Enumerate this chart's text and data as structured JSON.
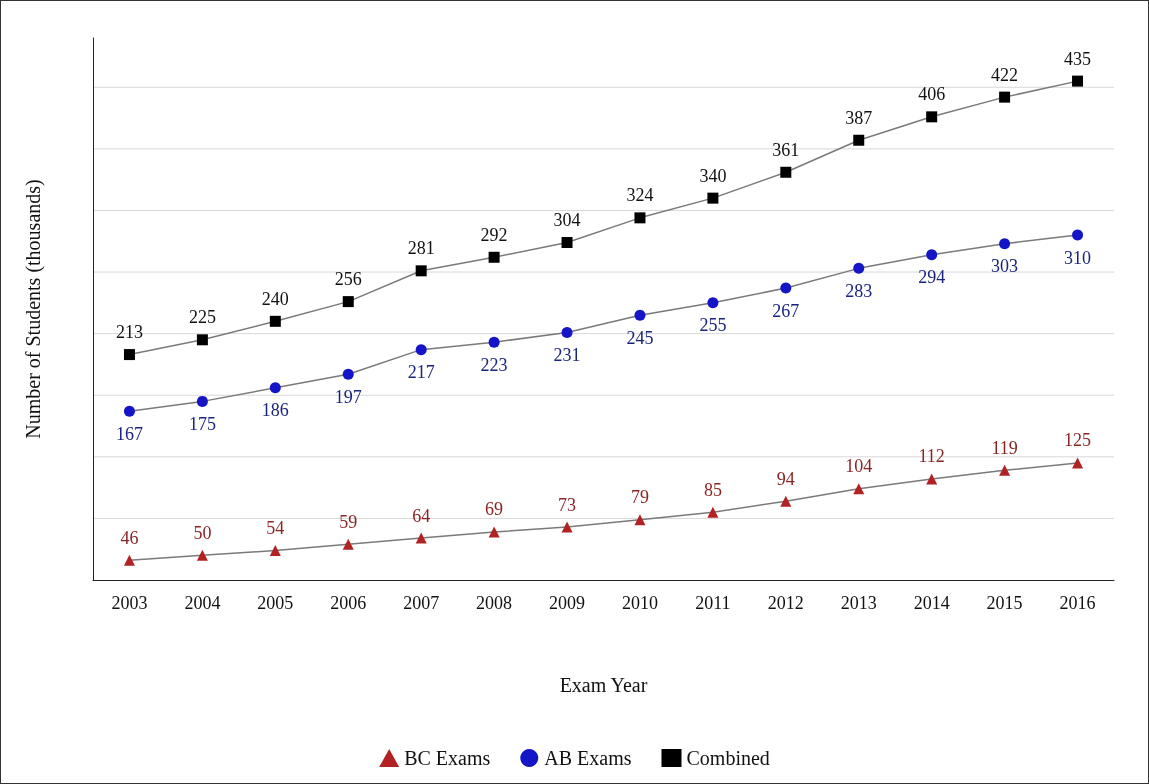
{
  "chart_data": {
    "type": "line",
    "xlabel": "Exam Year",
    "ylabel": "Number of Students (thousands)",
    "categories": [
      "2003",
      "2004",
      "2005",
      "2006",
      "2007",
      "2008",
      "2009",
      "2010",
      "2011",
      "2012",
      "2013",
      "2014",
      "2015",
      "2016"
    ],
    "series": [
      {
        "name": "BC Exams",
        "color": "#b22222",
        "marker": "triangle",
        "values": [
          46,
          50,
          54,
          59,
          64,
          69,
          73,
          79,
          85,
          94,
          104,
          112,
          119,
          125
        ]
      },
      {
        "name": "AB Exams",
        "color": "#1515c8",
        "marker": "circle",
        "values": [
          167,
          175,
          186,
          197,
          217,
          223,
          231,
          245,
          255,
          267,
          283,
          294,
          303,
          310
        ]
      },
      {
        "name": "Combined",
        "color": "#000000",
        "marker": "square",
        "values": [
          213,
          225,
          240,
          256,
          281,
          292,
          304,
          324,
          340,
          361,
          387,
          406,
          422,
          435
        ]
      }
    ],
    "ylim": [
      30,
      470
    ],
    "yticks": [
      {
        "value": 80,
        "label": null
      },
      {
        "value": 130,
        "label": null
      },
      {
        "value": 180,
        "label": null
      },
      {
        "value": 230,
        "label": null
      },
      {
        "value": 280,
        "label": null
      },
      {
        "value": 330,
        "label": null
      },
      {
        "value": 380,
        "label": null
      },
      {
        "value": 430,
        "label": null
      }
    ],
    "grid": "y",
    "legend": "bottom",
    "data_labels": true,
    "line_style": "solid"
  }
}
